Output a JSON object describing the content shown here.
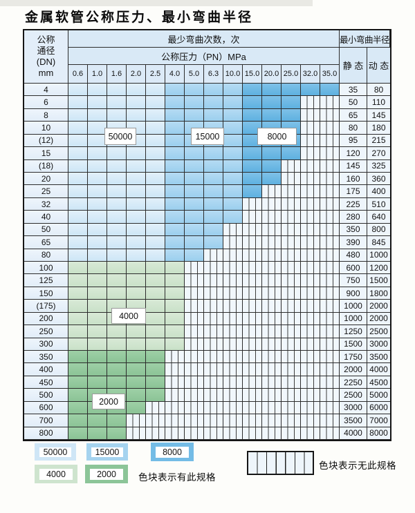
{
  "page": {
    "title": "金属软管公称压力、最小弯曲半径"
  },
  "table": {
    "dn_header": [
      "公称",
      "通径",
      "(DN)",
      "mm"
    ],
    "cycles_header": "最少弯曲次数，次",
    "pressure_header": "公称压力（PN）MPa",
    "radius_header": "最小弯曲半径",
    "static_header": "静 态",
    "dynamic_header": "动 态",
    "pressures": [
      "0.6",
      "1.0",
      "1.6",
      "2.0",
      "2.5",
      "4.0",
      "5.0",
      "6.3",
      "10.0",
      "15.0",
      "20.0",
      "25.0",
      "32.0",
      "35.0"
    ],
    "rows": [
      {
        "dn": "4",
        "colored": 14,
        "palette": "blue",
        "static": "35",
        "dynamic": "80"
      },
      {
        "dn": "6",
        "colored": 12,
        "palette": "blue",
        "static": "50",
        "dynamic": "110"
      },
      {
        "dn": "8",
        "colored": 12,
        "palette": "blue",
        "static": "65",
        "dynamic": "145"
      },
      {
        "dn": "10",
        "colored": 12,
        "palette": "blue",
        "static": "80",
        "dynamic": "180"
      },
      {
        "dn": "(12)",
        "colored": 12,
        "palette": "blue",
        "static": "95",
        "dynamic": "215"
      },
      {
        "dn": "15",
        "colored": 12,
        "palette": "blue",
        "static": "120",
        "dynamic": "270"
      },
      {
        "dn": "(18)",
        "colored": 11,
        "palette": "blue",
        "static": "145",
        "dynamic": "325"
      },
      {
        "dn": "20",
        "colored": 11,
        "palette": "blue",
        "static": "160",
        "dynamic": "360"
      },
      {
        "dn": "25",
        "colored": 10,
        "palette": "blue",
        "static": "175",
        "dynamic": "400"
      },
      {
        "dn": "32",
        "colored": 9,
        "palette": "blue",
        "static": "225",
        "dynamic": "510"
      },
      {
        "dn": "40",
        "colored": 9,
        "palette": "blue",
        "static": "280",
        "dynamic": "640"
      },
      {
        "dn": "50",
        "colored": 8,
        "palette": "blue",
        "static": "350",
        "dynamic": "800"
      },
      {
        "dn": "65",
        "colored": 8,
        "palette": "blue",
        "static": "390",
        "dynamic": "845"
      },
      {
        "dn": "80",
        "colored": 7,
        "palette": "blue",
        "static": "480",
        "dynamic": "1000"
      },
      {
        "dn": "100",
        "colored": 6,
        "palette": "green-light",
        "static": "600",
        "dynamic": "1200"
      },
      {
        "dn": "125",
        "colored": 6,
        "palette": "green-light",
        "static": "750",
        "dynamic": "1500"
      },
      {
        "dn": "150",
        "colored": 6,
        "palette": "green-light",
        "static": "900",
        "dynamic": "1800"
      },
      {
        "dn": "(175)",
        "colored": 6,
        "palette": "green-light",
        "static": "1000",
        "dynamic": "2000"
      },
      {
        "dn": "200",
        "colored": 6,
        "palette": "green-light",
        "static": "1000",
        "dynamic": "2000"
      },
      {
        "dn": "250",
        "colored": 6,
        "palette": "green-light",
        "static": "1250",
        "dynamic": "2500"
      },
      {
        "dn": "300",
        "colored": 6,
        "palette": "green-light",
        "static": "1500",
        "dynamic": "3000"
      },
      {
        "dn": "350",
        "colored": 5,
        "palette": "green-dark",
        "static": "1750",
        "dynamic": "3500"
      },
      {
        "dn": "400",
        "colored": 5,
        "palette": "green-dark",
        "static": "2000",
        "dynamic": "4000"
      },
      {
        "dn": "450",
        "colored": 5,
        "palette": "green-dark",
        "static": "2250",
        "dynamic": "4500"
      },
      {
        "dn": "500",
        "colored": 5,
        "palette": "green-dark",
        "static": "2500",
        "dynamic": "5000"
      },
      {
        "dn": "600",
        "colored": 4,
        "palette": "green-dark",
        "static": "3000",
        "dynamic": "6000"
      },
      {
        "dn": "700",
        "colored": 3,
        "palette": "green-dark",
        "static": "3500",
        "dynamic": "7000"
      },
      {
        "dn": "800",
        "colored": 3,
        "palette": "green-dark",
        "static": "4000",
        "dynamic": "8000"
      }
    ]
  },
  "overlays": [
    {
      "text": "50000"
    },
    {
      "text": "15000"
    },
    {
      "text": "8000"
    },
    {
      "text": "4000"
    },
    {
      "text": "2000"
    }
  ],
  "legend": {
    "items": [
      {
        "label": "50000",
        "type": "blue-light"
      },
      {
        "label": "15000",
        "type": "blue-mid"
      },
      {
        "label": "8000",
        "type": "blue-dark"
      },
      {
        "label": "4000",
        "type": "green-light"
      },
      {
        "label": "2000",
        "type": "green-dark"
      }
    ],
    "has_spec_text": "色块表示有此规格",
    "no_spec_text": "色块表示无此规格"
  },
  "colors": {
    "blue_light": "#d6eaf8",
    "blue_mid": "#a6d4f0",
    "blue_dark": "#6db9e4",
    "green_light": "#d0e5cf",
    "green_dark": "#94c99e",
    "grid_line": "#2b2b2b"
  }
}
